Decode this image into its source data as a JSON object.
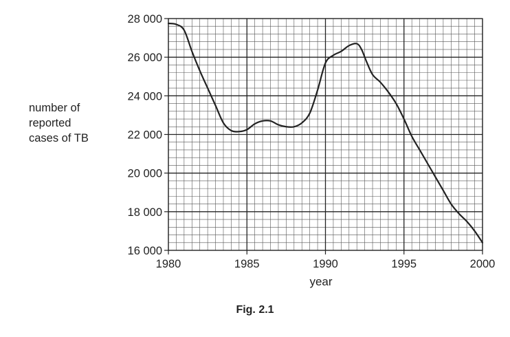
{
  "chart_data": {
    "type": "line",
    "title": "",
    "xlabel": "year",
    "ylabel_lines": [
      "number of",
      "reported",
      "cases of TB"
    ],
    "xlim": [
      1980,
      2000
    ],
    "ylim": [
      16000,
      28000
    ],
    "x_ticks": [
      1980,
      1985,
      1990,
      1995,
      2000
    ],
    "x_tick_labels": [
      "1980",
      "1985",
      "1990",
      "1995",
      "2000"
    ],
    "y_ticks": [
      16000,
      18000,
      20000,
      22000,
      24000,
      26000,
      28000
    ],
    "y_tick_labels": [
      "16 000",
      "18 000",
      "20 000",
      "22 000",
      "24 000",
      "26 000",
      "28 000"
    ],
    "grid": true,
    "minor_x_step": 0.5,
    "minor_y_step": 400,
    "line_color": "#222222",
    "series": [
      {
        "x": [
          1980,
          1980.5,
          1981,
          1981.5,
          1982,
          1982.5,
          1983,
          1983.5,
          1984,
          1984.5,
          1985,
          1985.5,
          1986,
          1986.5,
          1987,
          1987.5,
          1988,
          1988.5,
          1989,
          1989.5,
          1990,
          1990.5,
          1991,
          1991.5,
          1992,
          1992.3,
          1992.6,
          1993,
          1993.5,
          1994,
          1994.5,
          1995,
          1995.5,
          1996,
          1996.5,
          1997,
          1997.5,
          1998,
          1998.5,
          1999,
          1999.5,
          2000
        ],
        "y": [
          27750,
          27700,
          27400,
          26300,
          25300,
          24400,
          23500,
          22600,
          22200,
          22150,
          22250,
          22550,
          22700,
          22700,
          22500,
          22400,
          22400,
          22600,
          23100,
          24300,
          25700,
          26100,
          26300,
          26600,
          26700,
          26400,
          25800,
          25100,
          24700,
          24200,
          23600,
          22800,
          21900,
          21200,
          20500,
          19800,
          19100,
          18400,
          17900,
          17500,
          17000,
          16400
        ]
      }
    ]
  },
  "caption": "Fig. 2.1"
}
